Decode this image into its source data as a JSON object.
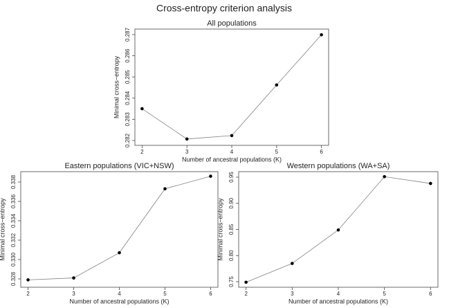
{
  "title": "Cross-entropy criterion analysis",
  "chart_data": [
    {
      "type": "line",
      "title": "All populations",
      "x_label": "Number of ancestral populations (K)",
      "y_label": "Minimal cross−entropy",
      "x": [
        2,
        3,
        4,
        5,
        6
      ],
      "values": [
        0.2835,
        0.28207,
        0.28223,
        0.28462,
        0.28699
      ],
      "color": "#000000",
      "line_color": "#808080",
      "xlim": [
        1.84,
        6.16
      ],
      "ylim": [
        0.28177,
        0.28726
      ],
      "xticks": [
        2,
        3,
        4,
        5,
        6
      ],
      "yticks": [
        0.282,
        0.283,
        0.284,
        0.285,
        0.286,
        0.287
      ]
    },
    {
      "type": "line",
      "title": "Eastern populations (VIC+NSW)",
      "x_label": "Number of ancestral populations (K)",
      "y_label": "Minimal cross−entropy",
      "x": [
        2,
        3,
        4,
        5,
        6
      ],
      "values": [
        0.3279,
        0.3281,
        0.3307,
        0.3373,
        0.3386
      ],
      "color": "#000000",
      "line_color": "#808080",
      "xlim": [
        1.84,
        6.16
      ],
      "ylim": [
        0.32714,
        0.33907
      ],
      "xticks": [
        2,
        3,
        4,
        5,
        6
      ],
      "yticks": [
        0.328,
        {
          "value": 0.33,
          "label": "0.330"
        },
        0.332,
        0.334,
        0.336,
        0.338
      ]
    },
    {
      "type": "line",
      "title": "Western populations (WA+SA)",
      "x_label": "Number of ancestral populations (K)",
      "y_label": "Minimal cross−entropy",
      "x": [
        2,
        3,
        4,
        5,
        6
      ],
      "values": [
        0.749,
        0.785,
        0.849,
        0.951,
        0.938
      ],
      "color": "#000000",
      "line_color": "#808080",
      "xlim": [
        1.84,
        6.16
      ],
      "ylim": [
        0.7394,
        0.9606
      ],
      "xticks": [
        2,
        3,
        4,
        5,
        6
      ],
      "yticks": [
        0.75,
        {
          "value": 0.8,
          "label": "0.80"
        },
        0.85,
        {
          "value": 0.9,
          "label": "0.90"
        },
        0.95
      ]
    }
  ]
}
